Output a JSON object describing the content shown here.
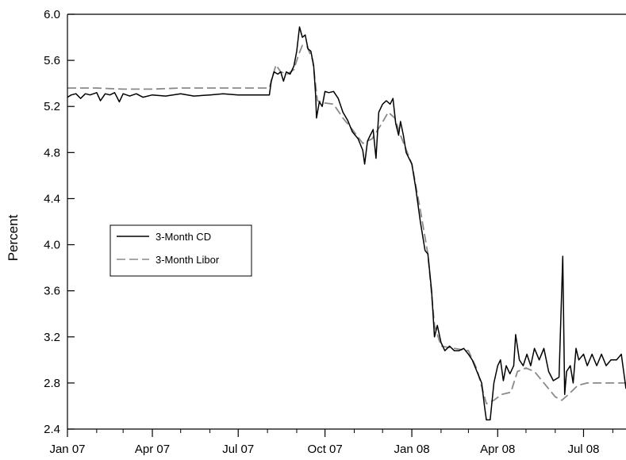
{
  "chart_data": {
    "type": "line",
    "title": "",
    "xlabel": "",
    "ylabel": "Percent",
    "ylim": [
      2.4,
      6.0
    ],
    "yticks": [
      2.4,
      2.8,
      3.2,
      3.6,
      4.0,
      4.4,
      4.8,
      5.2,
      5.6,
      6.0
    ],
    "ytick_labels": [
      "2.4",
      "2.8",
      "3.2",
      "3.6",
      "4.0",
      "4.4",
      "4.8",
      "5.2",
      "5.6",
      "6.0"
    ],
    "xlim": [
      "2007-01-01",
      "2008-08-15"
    ],
    "xticks": [
      "2007-01-01",
      "2007-04-01",
      "2007-07-01",
      "2007-10-01",
      "2008-01-01",
      "2008-04-01",
      "2008-07-01"
    ],
    "xtick_labels": [
      "Jan 07",
      "Apr 07",
      "Jul 07",
      "Oct 07",
      "Jan 08",
      "Apr 08",
      "Jul 08"
    ],
    "grid": false,
    "legend_position": "center-left",
    "series": [
      {
        "name": "3-Month CD",
        "color": "#000000",
        "dash": "solid",
        "points": [
          [
            "2007-01-01",
            5.28
          ],
          [
            "2007-01-05",
            5.3
          ],
          [
            "2007-01-10",
            5.31
          ],
          [
            "2007-01-15",
            5.27
          ],
          [
            "2007-01-20",
            5.31
          ],
          [
            "2007-01-25",
            5.3
          ],
          [
            "2007-02-01",
            5.32
          ],
          [
            "2007-02-05",
            5.25
          ],
          [
            "2007-02-10",
            5.31
          ],
          [
            "2007-02-15",
            5.3
          ],
          [
            "2007-02-20",
            5.32
          ],
          [
            "2007-02-25",
            5.24
          ],
          [
            "2007-03-01",
            5.31
          ],
          [
            "2007-03-08",
            5.29
          ],
          [
            "2007-03-15",
            5.31
          ],
          [
            "2007-03-22",
            5.28
          ],
          [
            "2007-04-01",
            5.3
          ],
          [
            "2007-04-15",
            5.29
          ],
          [
            "2007-05-01",
            5.31
          ],
          [
            "2007-05-15",
            5.29
          ],
          [
            "2007-06-01",
            5.3
          ],
          [
            "2007-06-15",
            5.31
          ],
          [
            "2007-07-01",
            5.3
          ],
          [
            "2007-07-15",
            5.3
          ],
          [
            "2007-07-31",
            5.3
          ],
          [
            "2007-08-03",
            5.3
          ],
          [
            "2007-08-05",
            5.42
          ],
          [
            "2007-08-08",
            5.5
          ],
          [
            "2007-08-12",
            5.48
          ],
          [
            "2007-08-15",
            5.5
          ],
          [
            "2007-08-18",
            5.42
          ],
          [
            "2007-08-21",
            5.5
          ],
          [
            "2007-08-25",
            5.48
          ],
          [
            "2007-08-29",
            5.55
          ],
          [
            "2007-09-01",
            5.68
          ],
          [
            "2007-09-04",
            5.89
          ],
          [
            "2007-09-07",
            5.8
          ],
          [
            "2007-09-10",
            5.82
          ],
          [
            "2007-09-13",
            5.7
          ],
          [
            "2007-09-16",
            5.68
          ],
          [
            "2007-09-19",
            5.55
          ],
          [
            "2007-09-21",
            5.3
          ],
          [
            "2007-09-22",
            5.1
          ],
          [
            "2007-09-25",
            5.24
          ],
          [
            "2007-09-28",
            5.2
          ],
          [
            "2007-10-01",
            5.33
          ],
          [
            "2007-10-05",
            5.32
          ],
          [
            "2007-10-10",
            5.33
          ],
          [
            "2007-10-15",
            5.27
          ],
          [
            "2007-10-20",
            5.15
          ],
          [
            "2007-10-25",
            5.08
          ],
          [
            "2007-10-30",
            4.98
          ],
          [
            "2007-11-05",
            4.92
          ],
          [
            "2007-11-10",
            4.82
          ],
          [
            "2007-11-12",
            4.7
          ],
          [
            "2007-11-15",
            4.9
          ],
          [
            "2007-11-18",
            4.95
          ],
          [
            "2007-11-21",
            5.0
          ],
          [
            "2007-11-24",
            4.75
          ],
          [
            "2007-11-27",
            5.15
          ],
          [
            "2007-12-01",
            5.22
          ],
          [
            "2007-12-05",
            5.25
          ],
          [
            "2007-12-09",
            5.22
          ],
          [
            "2007-12-12",
            5.27
          ],
          [
            "2007-12-15",
            5.05
          ],
          [
            "2007-12-18",
            4.95
          ],
          [
            "2007-12-20",
            5.07
          ],
          [
            "2007-12-23",
            4.95
          ],
          [
            "2007-12-26",
            4.8
          ],
          [
            "2008-01-01",
            4.7
          ],
          [
            "2008-01-05",
            4.5
          ],
          [
            "2008-01-10",
            4.2
          ],
          [
            "2008-01-15",
            3.95
          ],
          [
            "2008-01-18",
            3.92
          ],
          [
            "2008-01-22",
            3.6
          ],
          [
            "2008-01-25",
            3.2
          ],
          [
            "2008-01-28",
            3.3
          ],
          [
            "2008-02-01",
            3.15
          ],
          [
            "2008-02-05",
            3.08
          ],
          [
            "2008-02-10",
            3.12
          ],
          [
            "2008-02-15",
            3.08
          ],
          [
            "2008-02-20",
            3.08
          ],
          [
            "2008-02-25",
            3.1
          ],
          [
            "2008-03-01",
            3.05
          ],
          [
            "2008-03-05",
            3.0
          ],
          [
            "2008-03-10",
            2.9
          ],
          [
            "2008-03-15",
            2.8
          ],
          [
            "2008-03-18",
            2.6
          ],
          [
            "2008-03-20",
            2.48
          ],
          [
            "2008-03-24",
            2.48
          ],
          [
            "2008-03-28",
            2.8
          ],
          [
            "2008-04-01",
            2.95
          ],
          [
            "2008-04-04",
            3.0
          ],
          [
            "2008-04-07",
            2.82
          ],
          [
            "2008-04-10",
            2.95
          ],
          [
            "2008-04-14",
            2.88
          ],
          [
            "2008-04-18",
            2.95
          ],
          [
            "2008-04-20",
            3.22
          ],
          [
            "2008-04-24",
            3.0
          ],
          [
            "2008-04-28",
            2.95
          ],
          [
            "2008-05-02",
            3.05
          ],
          [
            "2008-05-06",
            2.95
          ],
          [
            "2008-05-10",
            3.1
          ],
          [
            "2008-05-15",
            3.0
          ],
          [
            "2008-05-20",
            3.1
          ],
          [
            "2008-05-25",
            2.9
          ],
          [
            "2008-05-30",
            2.82
          ],
          [
            "2008-06-05",
            2.85
          ],
          [
            "2008-06-09",
            3.9
          ],
          [
            "2008-06-11",
            2.7
          ],
          [
            "2008-06-13",
            2.9
          ],
          [
            "2008-06-17",
            2.95
          ],
          [
            "2008-06-20",
            2.8
          ],
          [
            "2008-06-23",
            3.1
          ],
          [
            "2008-06-26",
            3.0
          ],
          [
            "2008-07-01",
            3.05
          ],
          [
            "2008-07-05",
            2.95
          ],
          [
            "2008-07-10",
            3.05
          ],
          [
            "2008-07-15",
            2.95
          ],
          [
            "2008-07-20",
            3.05
          ],
          [
            "2008-07-25",
            2.95
          ],
          [
            "2008-07-30",
            3.0
          ],
          [
            "2008-08-05",
            3.0
          ],
          [
            "2008-08-10",
            3.05
          ],
          [
            "2008-08-15",
            2.75
          ]
        ]
      },
      {
        "name": "3-Month Libor",
        "color": "#8a8a8a",
        "dash": "dashed",
        "points": [
          [
            "2007-01-01",
            5.36
          ],
          [
            "2007-02-01",
            5.36
          ],
          [
            "2007-03-01",
            5.35
          ],
          [
            "2007-04-01",
            5.35
          ],
          [
            "2007-05-01",
            5.36
          ],
          [
            "2007-06-01",
            5.36
          ],
          [
            "2007-07-01",
            5.36
          ],
          [
            "2007-08-03",
            5.36
          ],
          [
            "2007-08-06",
            5.45
          ],
          [
            "2007-08-10",
            5.56
          ],
          [
            "2007-08-15",
            5.5
          ],
          [
            "2007-08-22",
            5.48
          ],
          [
            "2007-08-29",
            5.52
          ],
          [
            "2007-09-03",
            5.65
          ],
          [
            "2007-09-07",
            5.73
          ],
          [
            "2007-09-12",
            5.72
          ],
          [
            "2007-09-18",
            5.6
          ],
          [
            "2007-09-23",
            5.25
          ],
          [
            "2007-10-01",
            5.23
          ],
          [
            "2007-10-10",
            5.22
          ],
          [
            "2007-10-20",
            5.1
          ],
          [
            "2007-10-30",
            5.0
          ],
          [
            "2007-11-10",
            4.88
          ],
          [
            "2007-11-20",
            4.92
          ],
          [
            "2007-11-30",
            5.05
          ],
          [
            "2007-12-07",
            5.15
          ],
          [
            "2007-12-14",
            5.1
          ],
          [
            "2007-12-20",
            4.95
          ],
          [
            "2008-01-01",
            4.7
          ],
          [
            "2008-01-10",
            4.3
          ],
          [
            "2008-01-18",
            3.92
          ],
          [
            "2008-01-25",
            3.3
          ],
          [
            "2008-02-01",
            3.12
          ],
          [
            "2008-02-15",
            3.1
          ],
          [
            "2008-03-01",
            3.08
          ],
          [
            "2008-03-10",
            2.92
          ],
          [
            "2008-03-20",
            2.62
          ],
          [
            "2008-03-28",
            2.65
          ],
          [
            "2008-04-05",
            2.7
          ],
          [
            "2008-04-15",
            2.72
          ],
          [
            "2008-04-22",
            2.9
          ],
          [
            "2008-05-01",
            2.93
          ],
          [
            "2008-05-10",
            2.9
          ],
          [
            "2008-05-20",
            2.8
          ],
          [
            "2008-06-01",
            2.68
          ],
          [
            "2008-06-08",
            2.65
          ],
          [
            "2008-06-15",
            2.7
          ],
          [
            "2008-06-25",
            2.78
          ],
          [
            "2008-07-05",
            2.8
          ],
          [
            "2008-07-20",
            2.8
          ],
          [
            "2008-08-05",
            2.8
          ],
          [
            "2008-08-15",
            2.8
          ]
        ]
      }
    ]
  }
}
